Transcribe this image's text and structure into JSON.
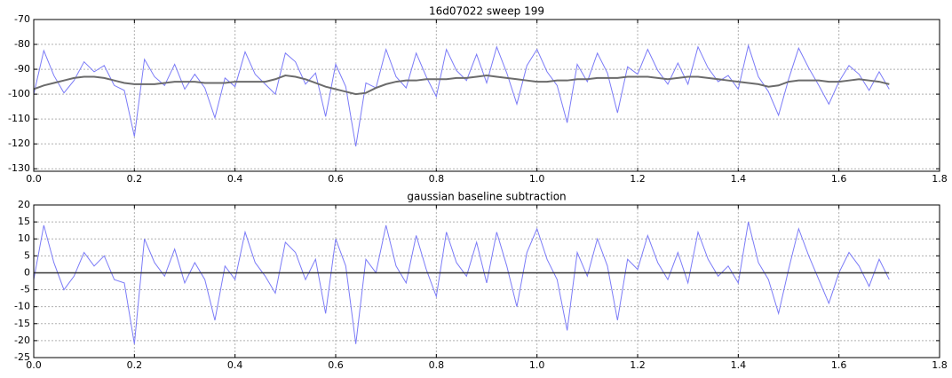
{
  "chart_data": [
    {
      "type": "line",
      "title": "16d07022 sweep 199",
      "x": [
        0,
        0.02,
        0.04,
        0.06,
        0.08,
        0.1,
        0.12,
        0.14,
        0.16,
        0.18,
        0.2,
        0.22,
        0.24,
        0.26,
        0.28,
        0.3,
        0.32,
        0.34,
        0.36,
        0.38,
        0.4,
        0.42,
        0.44,
        0.46,
        0.48,
        0.5,
        0.52,
        0.54,
        0.56,
        0.58,
        0.6,
        0.62,
        0.64,
        0.66,
        0.68,
        0.7,
        0.72,
        0.74,
        0.76,
        0.78,
        0.8,
        0.82,
        0.84,
        0.86,
        0.88,
        0.9,
        0.92,
        0.94,
        0.96,
        0.98,
        1,
        1.02,
        1.04,
        1.06,
        1.08,
        1.1,
        1.12,
        1.14,
        1.16,
        1.18,
        1.2,
        1.22,
        1.24,
        1.26,
        1.28,
        1.3,
        1.32,
        1.34,
        1.36,
        1.38,
        1.4,
        1.42,
        1.44,
        1.46,
        1.48,
        1.5,
        1.52,
        1.54,
        1.56,
        1.58,
        1.6,
        1.62,
        1.64,
        1.66,
        1.68,
        1.7
      ],
      "series": [
        {
          "color": "#7b7bf7",
          "width": 1,
          "values": [
            -100,
            -82.5,
            -92.5,
            -99.5,
            -94.5,
            -87,
            -91,
            -88.5,
            -96.5,
            -98.5,
            -117,
            -86,
            -93,
            -96.5,
            -88,
            -98,
            -92,
            -97.5,
            -109.5,
            -93.5,
            -97,
            -83,
            -92,
            -96,
            -100,
            -83.5,
            -87,
            -96,
            -91.5,
            -109,
            -88,
            -97,
            -121,
            -95.5,
            -97.5,
            -82,
            -93,
            -97.5,
            -83.5,
            -93,
            -101,
            -82,
            -90.5,
            -94.5,
            -84,
            -95.5,
            -81,
            -91.5,
            -104,
            -88.5,
            -82,
            -91,
            -96.5,
            -111.5,
            -88,
            -95,
            -83.5,
            -91.5,
            -107.5,
            -89,
            -92,
            -82,
            -90.5,
            -96,
            -87.5,
            -96,
            -81,
            -89.5,
            -95,
            -92.5,
            -98,
            -80.5,
            -93,
            -99,
            -108.5,
            -94,
            -81.5,
            -89.5,
            -96.5,
            -104,
            -95,
            -88.5,
            -92,
            -98.5,
            -91,
            -98
          ]
        },
        {
          "color": "#6b6b6b",
          "width": 2,
          "values": [
            -98,
            -96.5,
            -95.5,
            -94.5,
            -93.5,
            -93,
            -93,
            -93.5,
            -94.5,
            -95.5,
            -96,
            -96,
            -96,
            -95.5,
            -95,
            -95,
            -95,
            -95.5,
            -95.5,
            -95.5,
            -95,
            -95,
            -95,
            -95,
            -94,
            -92.5,
            -93,
            -94,
            -95.5,
            -97,
            -98,
            -99,
            -100,
            -99.5,
            -97.5,
            -96,
            -95,
            -94.5,
            -94.5,
            -94,
            -94,
            -94,
            -93.5,
            -93.5,
            -93,
            -92.5,
            -93,
            -93.5,
            -94,
            -94.5,
            -95,
            -95,
            -94.5,
            -94.5,
            -94,
            -94,
            -93.5,
            -93.5,
            -93.5,
            -93,
            -93,
            -93,
            -93.5,
            -94,
            -93.5,
            -93,
            -93,
            -93.5,
            -94,
            -94.5,
            -95,
            -95.5,
            -96,
            -97,
            -96.5,
            -95,
            -94.5,
            -94.5,
            -94.5,
            -95,
            -95,
            -94.5,
            -94,
            -94.5,
            -95,
            -96
          ]
        }
      ],
      "xlim": [
        0,
        1.8
      ],
      "xticks": [
        {
          "value": 0,
          "label": "0.0"
        },
        0.2,
        0.4,
        0.6,
        0.8,
        {
          "value": 1,
          "label": "1.0"
        },
        1.2,
        1.4,
        1.6,
        1.8
      ],
      "ylim": [
        -131,
        -70
      ],
      "yticks": [
        -130,
        -120,
        -110,
        -100,
        -90,
        -80,
        -70
      ],
      "grid": true
    },
    {
      "type": "line",
      "title": "gaussian baseline subtraction",
      "x": [
        0,
        0.02,
        0.04,
        0.06,
        0.08,
        0.1,
        0.12,
        0.14,
        0.16,
        0.18,
        0.2,
        0.22,
        0.24,
        0.26,
        0.28,
        0.3,
        0.32,
        0.34,
        0.36,
        0.38,
        0.4,
        0.42,
        0.44,
        0.46,
        0.48,
        0.5,
        0.52,
        0.54,
        0.56,
        0.58,
        0.6,
        0.62,
        0.64,
        0.66,
        0.68,
        0.7,
        0.72,
        0.74,
        0.76,
        0.78,
        0.8,
        0.82,
        0.84,
        0.86,
        0.88,
        0.9,
        0.92,
        0.94,
        0.96,
        0.98,
        1,
        1.02,
        1.04,
        1.06,
        1.08,
        1.1,
        1.12,
        1.14,
        1.16,
        1.18,
        1.2,
        1.22,
        1.24,
        1.26,
        1.28,
        1.3,
        1.32,
        1.34,
        1.36,
        1.38,
        1.4,
        1.42,
        1.44,
        1.46,
        1.48,
        1.5,
        1.52,
        1.54,
        1.56,
        1.58,
        1.6,
        1.62,
        1.64,
        1.66,
        1.68,
        1.7
      ],
      "series": [
        {
          "color": "#7b7bf7",
          "width": 1,
          "values": [
            -2,
            14,
            3,
            -5,
            -1,
            6,
            2,
            5,
            -2,
            -3,
            -21,
            10,
            3,
            -1,
            7,
            -3,
            3,
            -2,
            -14,
            2,
            -2,
            12,
            3,
            -1,
            -6,
            9,
            6,
            -2,
            4,
            -12,
            10,
            2,
            -21,
            4,
            0,
            14,
            2,
            -3,
            11,
            1,
            -7,
            12,
            3,
            -1,
            9,
            -3,
            12,
            2,
            -10,
            6,
            13,
            4,
            -2,
            -17,
            6,
            -1,
            10,
            2,
            -14,
            4,
            1,
            11,
            3,
            -2,
            6,
            -3,
            12,
            4,
            -1,
            2,
            -3,
            15,
            3,
            -2,
            -12,
            1,
            13,
            5,
            -2,
            -9,
            0,
            6,
            2,
            -4,
            4,
            -2
          ]
        }
      ],
      "hline": 0,
      "hline_color": "#333333",
      "xlim": [
        0,
        1.8
      ],
      "xticks": [
        {
          "value": 0,
          "label": "0.0"
        },
        0.2,
        0.4,
        0.6,
        0.8,
        {
          "value": 1,
          "label": "1.0"
        },
        1.2,
        1.4,
        1.6,
        1.8
      ],
      "ylim": [
        -25,
        20
      ],
      "yticks": [
        -25,
        -20,
        -15,
        -10,
        -5,
        0,
        5,
        10,
        15,
        20
      ],
      "grid": true
    }
  ]
}
